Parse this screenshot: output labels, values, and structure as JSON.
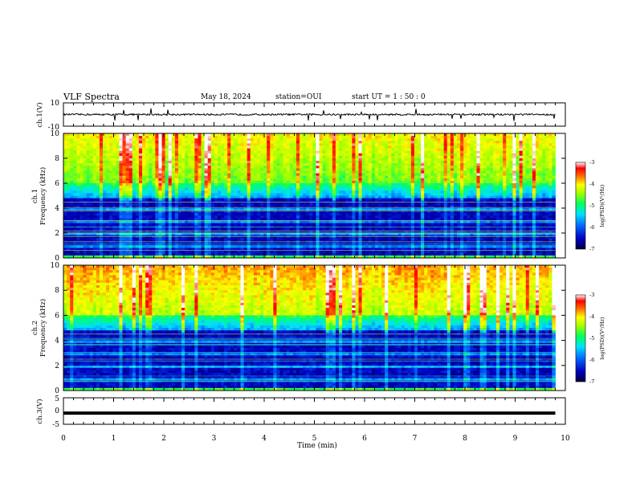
{
  "header": {
    "title": "VLF Spectra",
    "date": "May 18, 2024",
    "station": "station=OUI",
    "start_time": "start  UT =   1 : 50 : 0"
  },
  "chart_data": {
    "type": "heatmap",
    "xlabel": "Time  (min)",
    "xlim": [
      0,
      10
    ],
    "x_ticks": [
      "0",
      "1",
      "2",
      "3",
      "4",
      "5",
      "6",
      "7",
      "8",
      "9",
      "10"
    ],
    "panels": [
      {
        "id": "ch1-waveform",
        "type": "line",
        "ylabel": "ch.1(V)",
        "ylim": [
          -10,
          10
        ],
        "y_ticks": [
          "10",
          "-10"
        ],
        "baseline": 0,
        "data_end_min": 9.8
      },
      {
        "id": "ch1-spectrogram",
        "type": "heatmap",
        "ylabel_channel": "ch.1",
        "ylabel": "Frequency  (kHz)",
        "ylim": [
          0,
          10
        ],
        "y_ticks": [
          "0",
          "2",
          "4",
          "6",
          "8",
          "10"
        ],
        "data_end_min": 9.8,
        "colorbar": {
          "label": "log(PSD)(V²/Hz)",
          "range": [
            -7,
            -3
          ],
          "ticks": [
            "-3",
            "-4",
            "-5",
            "-6",
            "-7"
          ]
        }
      },
      {
        "id": "ch2-spectrogram",
        "type": "heatmap",
        "ylabel_channel": "ch.2",
        "ylabel": "Frequency  (kHz)",
        "ylim": [
          0,
          10
        ],
        "y_ticks": [
          "0",
          "2",
          "4",
          "6",
          "8",
          "10"
        ],
        "data_end_min": 9.8,
        "colorbar": {
          "label": "log(PSD)(V²/Hz)",
          "range": [
            -7,
            -3
          ],
          "ticks": [
            "-3",
            "-4",
            "-5",
            "-6",
            "-7"
          ]
        }
      },
      {
        "id": "ch3-waveform",
        "type": "line",
        "ylabel": "ch.3(V)",
        "ylim": [
          -5,
          5
        ],
        "y_ticks": [
          "5",
          "0",
          "-5"
        ],
        "baseline": -0.8,
        "data_end_min": 9.8
      }
    ]
  },
  "colors": {
    "colormap": [
      "#000080",
      "#0000ff",
      "#00a0ff",
      "#00ffff",
      "#00ff80",
      "#80ff00",
      "#ffff00",
      "#ff8000",
      "#ff0000",
      "#ffffff"
    ],
    "line": "#000000",
    "background": "#ffffff"
  }
}
